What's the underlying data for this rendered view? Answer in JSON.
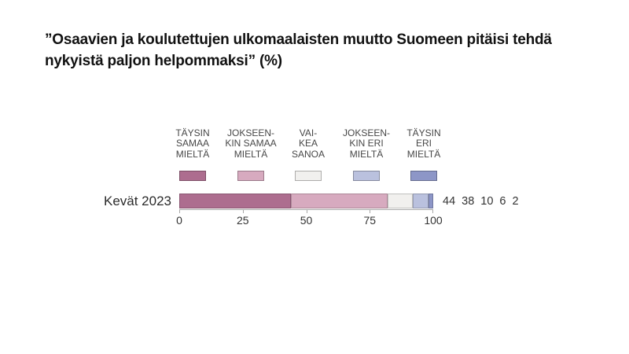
{
  "title": {
    "line1": "”Osaavien ja koulutettujen ulkomaalaisten muutto Suomeen pitäisi tehdä",
    "line2": "nykyistä paljon helpommaksi” (%)"
  },
  "legend": {
    "items": [
      {
        "line1": "TÄYSIN",
        "line2": "SAMAA",
        "line3": "MIELTÄ",
        "color": "#ad6d8f"
      },
      {
        "line1": "JOKSEEN-",
        "line2": "KIN SAMAA",
        "line3": "MIELTÄ",
        "color": "#d7aabf"
      },
      {
        "line1": "VAI-",
        "line2": "KEA",
        "line3": "SANOA",
        "color": "#f1f0ee"
      },
      {
        "line1": "JOKSEEN-",
        "line2": "KIN ERI",
        "line3": "MIELTÄ",
        "color": "#bac1de"
      },
      {
        "line1": "TÄYSIN",
        "line2": "ERI",
        "line3": "MIELTÄ",
        "color": "#8d96c7"
      }
    ]
  },
  "chart_data": {
    "type": "bar",
    "variant": "horizontal-stacked",
    "title": "”Osaavien ja koulutettujen ulkomaalaisten muutto Suomeen pitäisi tehdä nykyistä paljon helpommaksi” (%)",
    "categories": [
      "Kevät 2023"
    ],
    "series": [
      {
        "name": "TÄYSIN SAMAA MIELTÄ",
        "values": [
          44
        ],
        "color": "#ad6d8f"
      },
      {
        "name": "JOKSEENKIN SAMAA MIELTÄ",
        "values": [
          38
        ],
        "color": "#d7aabf"
      },
      {
        "name": "VAIKEA SANOA",
        "values": [
          10
        ],
        "color": "#f1f0ee"
      },
      {
        "name": "JOKSEENKIN ERI MIELTÄ",
        "values": [
          6
        ],
        "color": "#bac1de"
      },
      {
        "name": "TÄYSIN ERI MIELTÄ",
        "values": [
          2
        ],
        "color": "#8d96c7"
      }
    ],
    "value_labels": [
      "44",
      "38",
      "10",
      "6",
      "2"
    ],
    "xlim": [
      0,
      100
    ],
    "ticks": [
      "0",
      "25",
      "50",
      "75",
      "100"
    ],
    "grid": false,
    "legend_position": "top"
  },
  "colors": {
    "background": "#ffffff",
    "axis": "#a8a8a8",
    "title_text": "#111111",
    "legend_text": "#474747"
  }
}
